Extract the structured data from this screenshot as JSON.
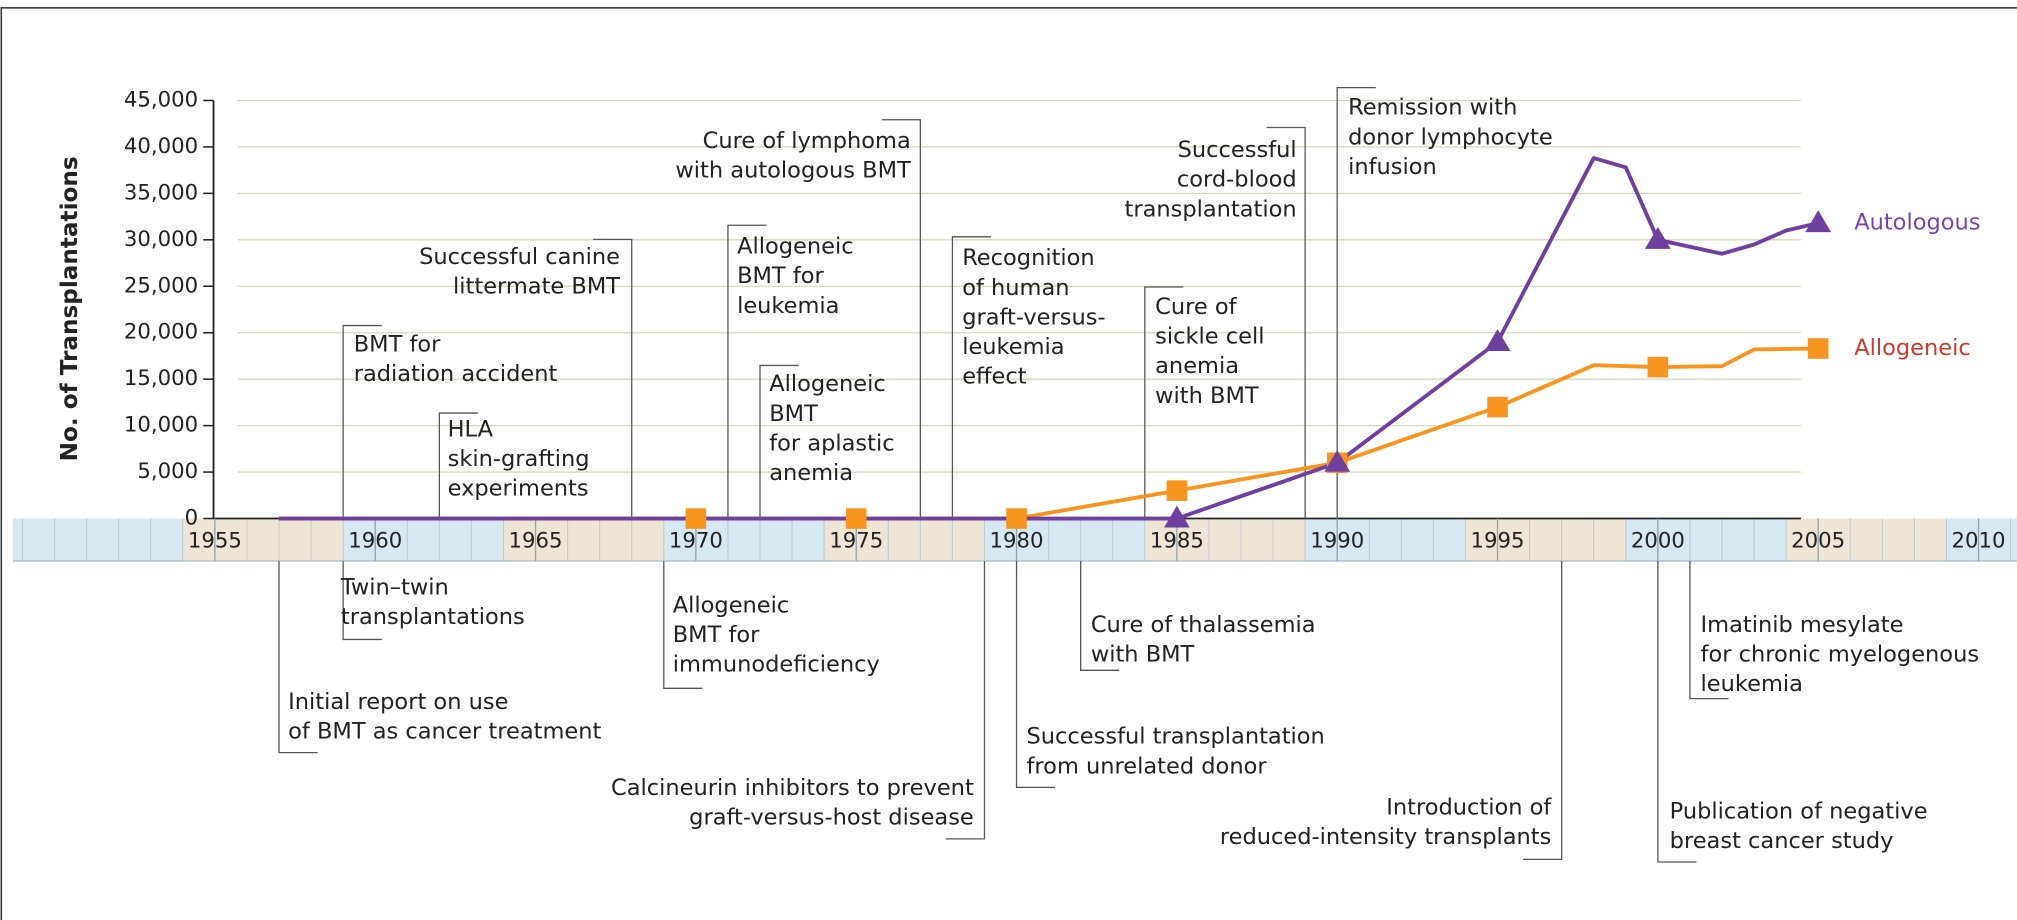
{
  "chart_data": {
    "type": "line",
    "y_label": "No. of Transplantations",
    "xlim": [
      1948.7,
      2011.2
    ],
    "xticks": [
      1955,
      1960,
      1965,
      1970,
      1975,
      1980,
      1985,
      1990,
      1995,
      2000,
      2005,
      2010
    ],
    "ylim": [
      0,
      45000
    ],
    "yticks": [
      0,
      {
        "value": 5000,
        "label": "5,000"
      },
      {
        "value": 10000,
        "label": "10,000"
      },
      {
        "value": 15000,
        "label": "15,000"
      },
      {
        "value": 20000,
        "label": "20,000"
      },
      {
        "value": 25000,
        "label": "25,000"
      },
      {
        "value": 30000,
        "label": "30,000"
      },
      {
        "value": 35000,
        "label": "35,000"
      },
      {
        "value": 40000,
        "label": "40,000"
      },
      {
        "value": 45000,
        "label": "45,000"
      }
    ],
    "grid": true,
    "series": [
      {
        "name": "Allogeneic",
        "color": "#f7941d",
        "label_color": "#d0392b",
        "marker": "square",
        "x": [
          1957,
          1970,
          1975,
          1980,
          1985,
          1990,
          1995,
          1998,
          2000,
          2002,
          2003,
          2005
        ],
        "values": [
          0,
          0,
          0,
          0,
          3000,
          6000,
          12000,
          16500,
          16300,
          16400,
          18200,
          18300
        ]
      },
      {
        "name": "Autologous",
        "color": "#6f3fa0",
        "label_color": "#7a44b0",
        "marker": "triangle",
        "x": [
          1957,
          1985,
          1990,
          1995,
          1998,
          1999,
          2000,
          2002,
          2003,
          2004,
          2005
        ],
        "values": [
          0,
          0,
          6000,
          19000,
          38800,
          37800,
          30000,
          28500,
          29500,
          31000,
          31800
        ]
      }
    ],
    "annotations": [
      {
        "x": 1959,
        "text": [
          "BMT for",
          "radiation accident"
        ]
      },
      {
        "x": 1962,
        "text": [
          "HLA",
          "skin-grafting",
          "experiments"
        ]
      },
      {
        "x": 1968,
        "text": [
          "Successful canine",
          "littermate BMT"
        ]
      },
      {
        "x": 1977,
        "text": [
          "Cure of lymphoma",
          "with autologous BMT"
        ]
      },
      {
        "x": 1971,
        "text": [
          "Allogeneic",
          "BMT for",
          "leukemia"
        ]
      },
      {
        "x": 1972,
        "text": [
          "Allogeneic",
          "BMT",
          "for aplastic",
          "anemia"
        ]
      },
      {
        "x": 1978,
        "text": [
          "Recognition",
          "of human",
          "graft-versus-",
          "leukemia",
          "effect"
        ]
      },
      {
        "x": 1984,
        "text": [
          "Cure of",
          "sickle cell",
          "anemia",
          "with BMT"
        ]
      },
      {
        "x": 1989,
        "text": [
          "Successful",
          "cord-blood",
          "transplantation"
        ]
      },
      {
        "x": 1990,
        "text": [
          "Remission with",
          "donor lymphocyte",
          "infusion"
        ]
      },
      {
        "x": 1959,
        "text": [
          "Twin–twin",
          "transplantations"
        ]
      },
      {
        "x": 1957,
        "text": [
          "Initial report on use",
          "of BMT as cancer treatment"
        ]
      },
      {
        "x": 1969,
        "text": [
          "Allogeneic",
          "BMT for",
          "immunodeficiency"
        ]
      },
      {
        "x": 1979,
        "text": [
          "Calcineurin inhibitors to prevent",
          "graft-versus-host disease"
        ]
      },
      {
        "x": 1980,
        "text": [
          "Successful transplantation",
          "from unrelated donor"
        ]
      },
      {
        "x": 1982,
        "text": [
          "Cure of thalassemia",
          "with BMT"
        ]
      },
      {
        "x": 1997,
        "text": [
          "Introduction of",
          "reduced-intensity transplants"
        ]
      },
      {
        "x": 2000,
        "text": [
          "Publication of negative",
          "breast cancer study"
        ]
      },
      {
        "x": 2001,
        "text": [
          "Imatinib mesylate",
          "for chronic myelogenous",
          "leukemia"
        ]
      }
    ]
  }
}
